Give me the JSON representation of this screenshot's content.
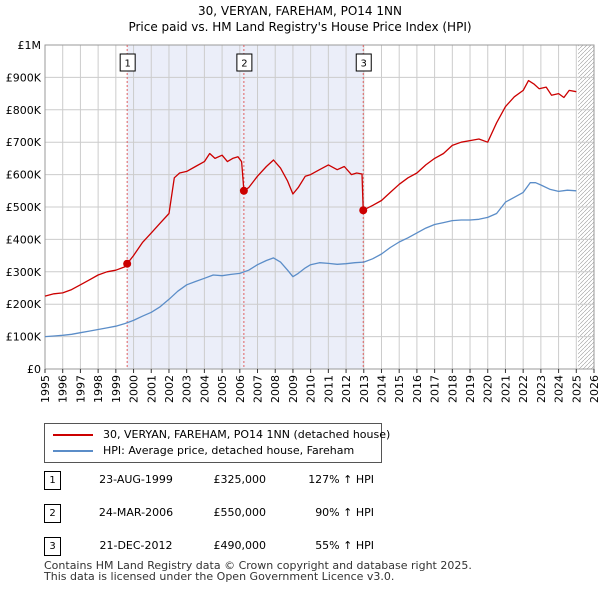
{
  "chart_data": {
    "type": "line",
    "title": "30, VERYAN, FAREHAM, PO14 1NN",
    "subtitle": "Price paid vs. HM Land Registry's House Price Index (HPI)",
    "xlim": [
      1995,
      2026
    ],
    "ylim": [
      0,
      1000000
    ],
    "x_ticks": [
      "1995",
      "1996",
      "1997",
      "1998",
      "1999",
      "2000",
      "2001",
      "2002",
      "2003",
      "2004",
      "2005",
      "2006",
      "2007",
      "2008",
      "2009",
      "2010",
      "2011",
      "2012",
      "2013",
      "2014",
      "2015",
      "2016",
      "2017",
      "2018",
      "2019",
      "2020",
      "2021",
      "2022",
      "2023",
      "2024",
      "2025",
      "2026"
    ],
    "y_ticks": [
      {
        "value": 0,
        "label": "£0"
      },
      {
        "value": 100000,
        "label": "£100K"
      },
      {
        "value": 200000,
        "label": "£200K"
      },
      {
        "value": 300000,
        "label": "£300K"
      },
      {
        "value": 400000,
        "label": "£400K"
      },
      {
        "value": 500000,
        "label": "£500K"
      },
      {
        "value": 600000,
        "label": "£600K"
      },
      {
        "value": 700000,
        "label": "£700K"
      },
      {
        "value": 800000,
        "label": "£800K"
      },
      {
        "value": 900000,
        "label": "£900K"
      },
      {
        "value": 1000000,
        "label": "£1M"
      }
    ],
    "grid": true,
    "forecast_from": 2025.1,
    "shaded_ranges": [
      [
        1999.64,
        2006.23
      ],
      [
        2006.23,
        2012.97
      ]
    ],
    "series": [
      {
        "name": "30, VERYAN, FAREHAM, PO14 1NN (detached house)",
        "color": "#cc0000",
        "x": [
          1995.0,
          1995.5,
          1996.0,
          1996.5,
          1997.0,
          1997.5,
          1998.0,
          1998.5,
          1999.0,
          1999.5,
          1999.64,
          2000.0,
          2000.5,
          2001.0,
          2001.5,
          2002.0,
          2002.3,
          2002.6,
          2003.0,
          2003.5,
          2004.0,
          2004.3,
          2004.6,
          2005.0,
          2005.3,
          2005.6,
          2005.9,
          2006.1,
          2006.23,
          2006.5,
          2007.0,
          2007.5,
          2007.9,
          2008.3,
          2008.7,
          2009.0,
          2009.3,
          2009.7,
          2010.0,
          2010.5,
          2011.0,
          2011.5,
          2011.9,
          2012.3,
          2012.6,
          2012.9,
          2012.97,
          2013.5,
          2014.0,
          2014.5,
          2015.0,
          2015.5,
          2016.0,
          2016.5,
          2017.0,
          2017.5,
          2018.0,
          2018.5,
          2019.0,
          2019.5,
          2020.0,
          2020.5,
          2021.0,
          2021.5,
          2022.0,
          2022.3,
          2022.6,
          2022.9,
          2023.3,
          2023.6,
          2024.0,
          2024.3,
          2024.6,
          2025.0
        ],
        "values": [
          225000,
          232000,
          235000,
          245000,
          260000,
          275000,
          290000,
          300000,
          305000,
          315000,
          325000,
          350000,
          390000,
          420000,
          450000,
          480000,
          590000,
          605000,
          610000,
          625000,
          640000,
          665000,
          650000,
          660000,
          640000,
          650000,
          655000,
          640000,
          550000,
          560000,
          595000,
          625000,
          645000,
          620000,
          580000,
          540000,
          560000,
          595000,
          600000,
          615000,
          630000,
          615000,
          625000,
          600000,
          605000,
          602000,
          490000,
          505000,
          520000,
          545000,
          570000,
          590000,
          605000,
          630000,
          650000,
          665000,
          690000,
          700000,
          705000,
          710000,
          700000,
          760000,
          810000,
          840000,
          860000,
          890000,
          880000,
          865000,
          870000,
          845000,
          850000,
          838000,
          860000,
          856000
        ]
      },
      {
        "name": "HPI: Average price, detached house, Fareham",
        "color": "#5b8dc8",
        "x": [
          1995.0,
          1995.5,
          1996.0,
          1996.5,
          1997.0,
          1997.5,
          1998.0,
          1998.5,
          1999.0,
          1999.5,
          2000.0,
          2000.5,
          2001.0,
          2001.5,
          2002.0,
          2002.5,
          2003.0,
          2003.5,
          2004.0,
          2004.5,
          2005.0,
          2005.5,
          2006.0,
          2006.5,
          2007.0,
          2007.5,
          2007.9,
          2008.3,
          2008.7,
          2009.0,
          2009.3,
          2009.7,
          2010.0,
          2010.5,
          2011.0,
          2011.5,
          2012.0,
          2012.5,
          2013.0,
          2013.5,
          2014.0,
          2014.5,
          2015.0,
          2015.5,
          2016.0,
          2016.5,
          2017.0,
          2017.5,
          2018.0,
          2018.5,
          2019.0,
          2019.5,
          2020.0,
          2020.5,
          2021.0,
          2021.5,
          2022.0,
          2022.4,
          2022.7,
          2023.0,
          2023.5,
          2024.0,
          2024.5,
          2025.0
        ],
        "values": [
          100000,
          102000,
          104000,
          107000,
          112000,
          117000,
          122000,
          127000,
          132000,
          140000,
          150000,
          163000,
          175000,
          192000,
          215000,
          240000,
          260000,
          270000,
          280000,
          290000,
          288000,
          292000,
          295000,
          305000,
          322000,
          335000,
          343000,
          330000,
          305000,
          285000,
          295000,
          312000,
          322000,
          328000,
          326000,
          323000,
          325000,
          328000,
          330000,
          340000,
          355000,
          375000,
          392000,
          405000,
          420000,
          435000,
          446000,
          452000,
          458000,
          460000,
          460000,
          462000,
          468000,
          480000,
          515000,
          530000,
          545000,
          575000,
          575000,
          568000,
          555000,
          548000,
          552000,
          550000
        ]
      }
    ],
    "markers": [
      {
        "label": "1",
        "x": 1999.64,
        "value": 325000
      },
      {
        "label": "2",
        "x": 2006.23,
        "value": 550000
      },
      {
        "label": "3",
        "x": 2012.97,
        "value": 490000
      }
    ]
  },
  "legend": {
    "property_label": "30, VERYAN, FAREHAM, PO14 1NN (detached house)",
    "hpi_label": "HPI: Average price, detached house, Fareham"
  },
  "sales": [
    {
      "num": "1",
      "date": "23-AUG-1999",
      "price": "£325,000",
      "hpi": "127% ↑ HPI"
    },
    {
      "num": "2",
      "date": "24-MAR-2006",
      "price": "£550,000",
      "hpi": "90% ↑ HPI"
    },
    {
      "num": "3",
      "date": "21-DEC-2012",
      "price": "£490,000",
      "hpi": "55% ↑ HPI"
    }
  ],
  "footer": {
    "line1": "Contains HM Land Registry data © Crown copyright and database right 2025.",
    "line2": "This data is licensed under the Open Government Licence v3.0."
  }
}
